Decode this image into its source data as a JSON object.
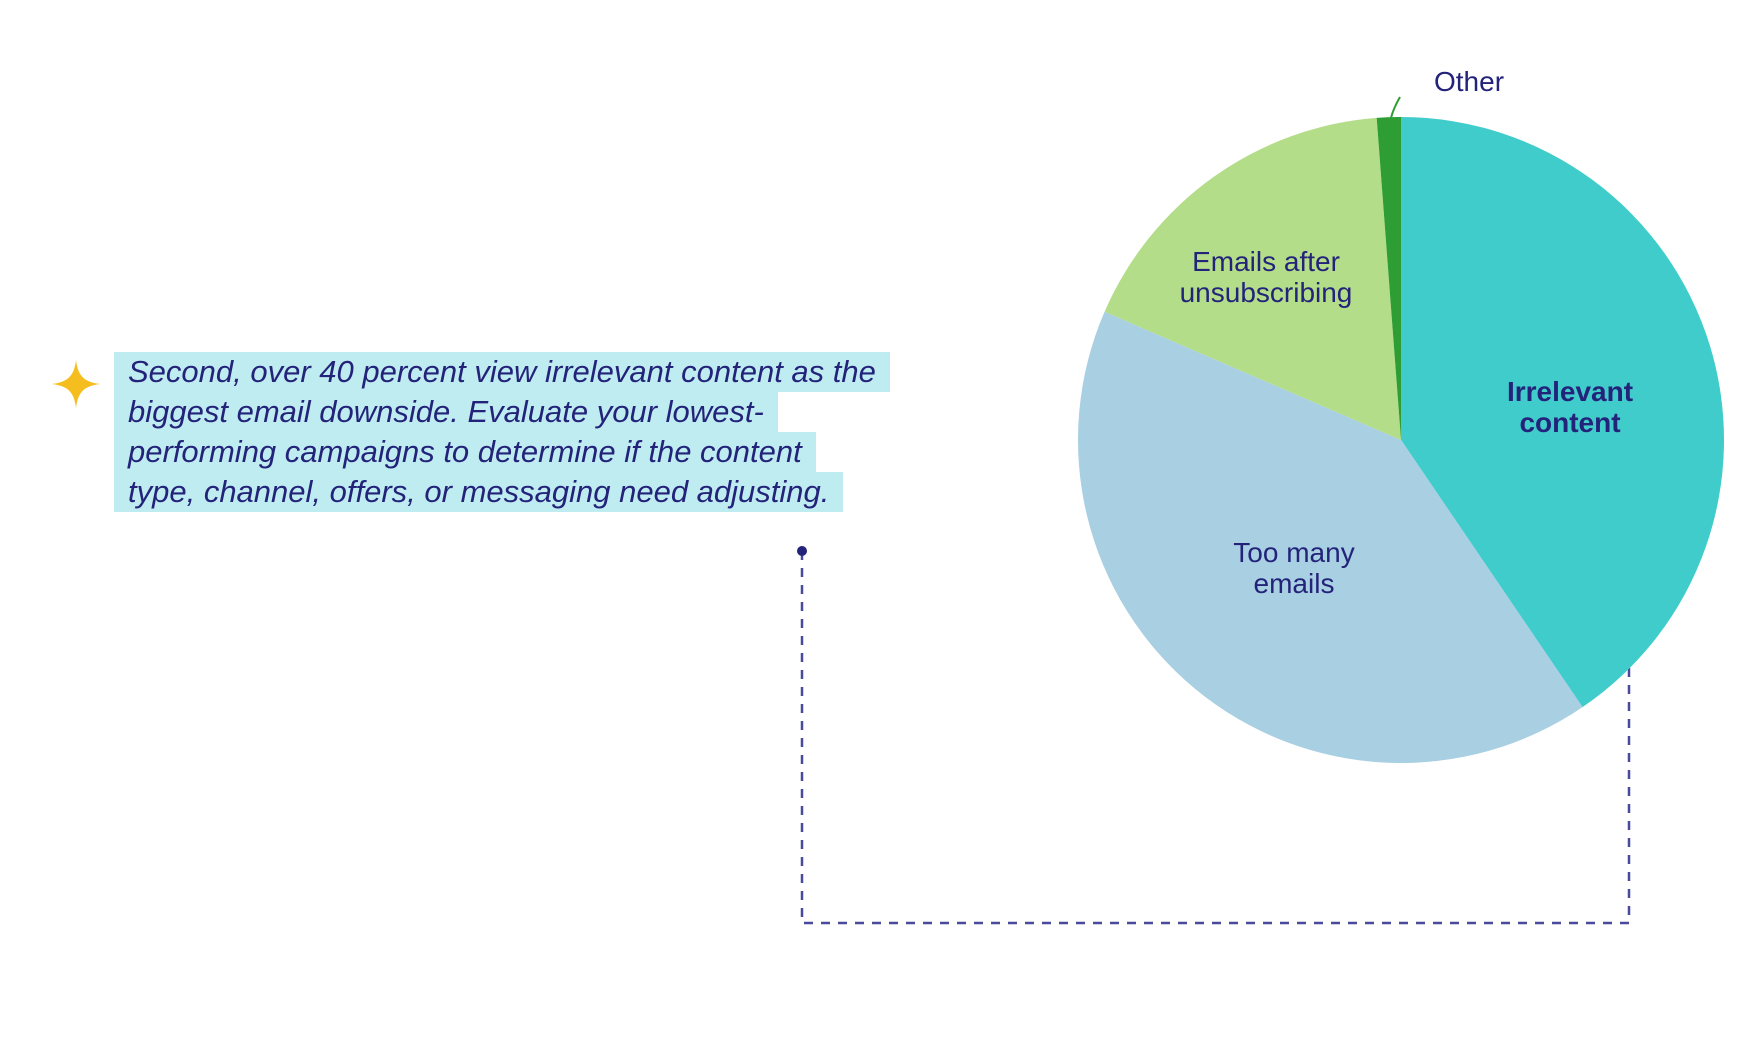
{
  "callout": {
    "lines": [
      "Second, over 40 percent view irrelevant content as the",
      "biggest email downside. Evaluate your lowest-",
      "performing campaigns to determine if the content",
      "type, channel, offers, or messaging need adjusting."
    ]
  },
  "colors": {
    "text": "#23237a",
    "highlight": "#bfecf1",
    "star": "#f5be1e",
    "connector": "#4a4a9c"
  },
  "icons": {
    "star": "sparkle-star-icon"
  },
  "chart_data": {
    "type": "pie",
    "start_angle_deg": 0,
    "direction": "clockwise",
    "slices": [
      {
        "label": "Irrelevant content",
        "value": 40.5,
        "color": "#41cccc",
        "bold": true
      },
      {
        "label": "Too many emails",
        "value": 41.0,
        "color": "#a8cfe2",
        "bold": false
      },
      {
        "label": "Emails after unsubscribing",
        "value": 17.3,
        "color": "#b3dd88",
        "bold": false
      },
      {
        "label": "Other",
        "value": 1.2,
        "color": "#2e9e34",
        "bold": false
      }
    ],
    "legend": "none"
  }
}
